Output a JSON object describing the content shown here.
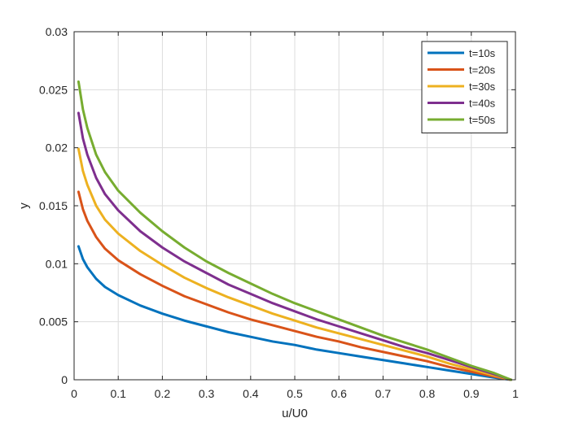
{
  "chart_data": {
    "type": "line",
    "xlabel": "u/U0",
    "ylabel": "y",
    "xlim": [
      0,
      1
    ],
    "ylim": [
      0,
      0.03
    ],
    "xticks": [
      "0",
      "0.1",
      "0.2",
      "0.3",
      "0.4",
      "0.5",
      "0.6",
      "0.7",
      "0.8",
      "0.9",
      "1"
    ],
    "yticks": [
      "0",
      "0.005",
      "0.01",
      "0.015",
      "0.02",
      "0.025",
      "0.03"
    ],
    "grid": true,
    "legend_position": "top-right",
    "x": [
      0.01,
      0.02,
      0.03,
      0.05,
      0.07,
      0.1,
      0.15,
      0.2,
      0.25,
      0.3,
      0.35,
      0.4,
      0.45,
      0.5,
      0.55,
      0.6,
      0.65,
      0.7,
      0.75,
      0.8,
      0.85,
      0.9,
      0.95,
      0.99
    ],
    "series": [
      {
        "name": "t=10s",
        "color": "#0072BD",
        "values": [
          0.0115,
          0.0104,
          0.0097,
          0.0087,
          0.008,
          0.0073,
          0.0064,
          0.0057,
          0.0051,
          0.0046,
          0.0041,
          0.0037,
          0.0033,
          0.003,
          0.0026,
          0.0023,
          0.002,
          0.0017,
          0.0014,
          0.0011,
          0.0008,
          0.0005,
          0.0002,
          0.0
        ]
      },
      {
        "name": "t=20s",
        "color": "#D95319",
        "values": [
          0.0162,
          0.0147,
          0.0137,
          0.0123,
          0.0113,
          0.0103,
          0.0091,
          0.0081,
          0.0072,
          0.0065,
          0.0058,
          0.0052,
          0.0047,
          0.0042,
          0.0037,
          0.0033,
          0.0028,
          0.0024,
          0.002,
          0.0016,
          0.0011,
          0.0007,
          0.0003,
          0.0
        ]
      },
      {
        "name": "t=30s",
        "color": "#EDB120",
        "values": [
          0.0199,
          0.018,
          0.0168,
          0.015,
          0.0138,
          0.0126,
          0.0111,
          0.0099,
          0.0088,
          0.0079,
          0.0071,
          0.0064,
          0.0057,
          0.0051,
          0.0045,
          0.004,
          0.0035,
          0.003,
          0.0025,
          0.002,
          0.0014,
          0.0009,
          0.0004,
          0.0
        ]
      },
      {
        "name": "t=40s",
        "color": "#7E2F8E",
        "values": [
          0.023,
          0.0208,
          0.0194,
          0.0174,
          0.016,
          0.0146,
          0.0128,
          0.0114,
          0.0102,
          0.0092,
          0.0082,
          0.0074,
          0.0066,
          0.0059,
          0.0052,
          0.0046,
          0.004,
          0.0034,
          0.0028,
          0.0023,
          0.0017,
          0.0011,
          0.0005,
          0.0
        ]
      },
      {
        "name": "t=50s",
        "color": "#77AC30",
        "values": [
          0.0257,
          0.0233,
          0.0217,
          0.0194,
          0.0179,
          0.0163,
          0.0144,
          0.0128,
          0.0114,
          0.0102,
          0.0092,
          0.0083,
          0.0074,
          0.0066,
          0.0059,
          0.0052,
          0.0045,
          0.0038,
          0.0032,
          0.0026,
          0.0019,
          0.0012,
          0.0006,
          0.0
        ]
      }
    ]
  }
}
